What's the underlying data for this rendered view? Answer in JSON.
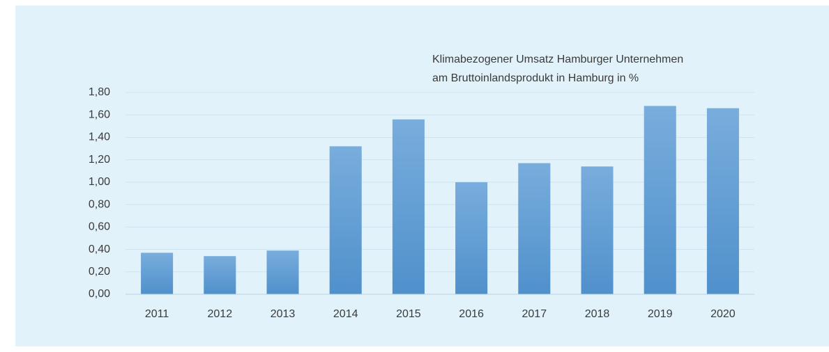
{
  "chart_data": {
    "type": "bar",
    "title": [
      "Klimabezogener Umsatz Hamburger Unternehmen",
      "am Bruttoinlandsprodukt in Hamburg in %"
    ],
    "categories": [
      "2011",
      "2012",
      "2013",
      "2014",
      "2015",
      "2016",
      "2017",
      "2018",
      "2019",
      "2020"
    ],
    "values": [
      0.37,
      0.34,
      0.39,
      1.32,
      1.56,
      1.0,
      1.17,
      1.14,
      1.68,
      1.66
    ],
    "color": "#5b9bd5",
    "ylim": [
      0,
      1.8
    ],
    "yticks": [
      {
        "value": 0,
        "label": "0,00"
      },
      {
        "value": 0.2,
        "label": "0,20"
      },
      {
        "value": 0.4,
        "label": "0,40"
      },
      {
        "value": 0.6,
        "label": "0,60"
      },
      {
        "value": 0.8,
        "label": "0,80"
      },
      {
        "value": 1.0,
        "label": "1,00"
      },
      {
        "value": 1.2,
        "label": "1,20"
      },
      {
        "value": 1.4,
        "label": "1,40"
      },
      {
        "value": 1.6,
        "label": "1,60"
      },
      {
        "value": 1.8,
        "label": "1,80"
      }
    ],
    "grid": true
  }
}
